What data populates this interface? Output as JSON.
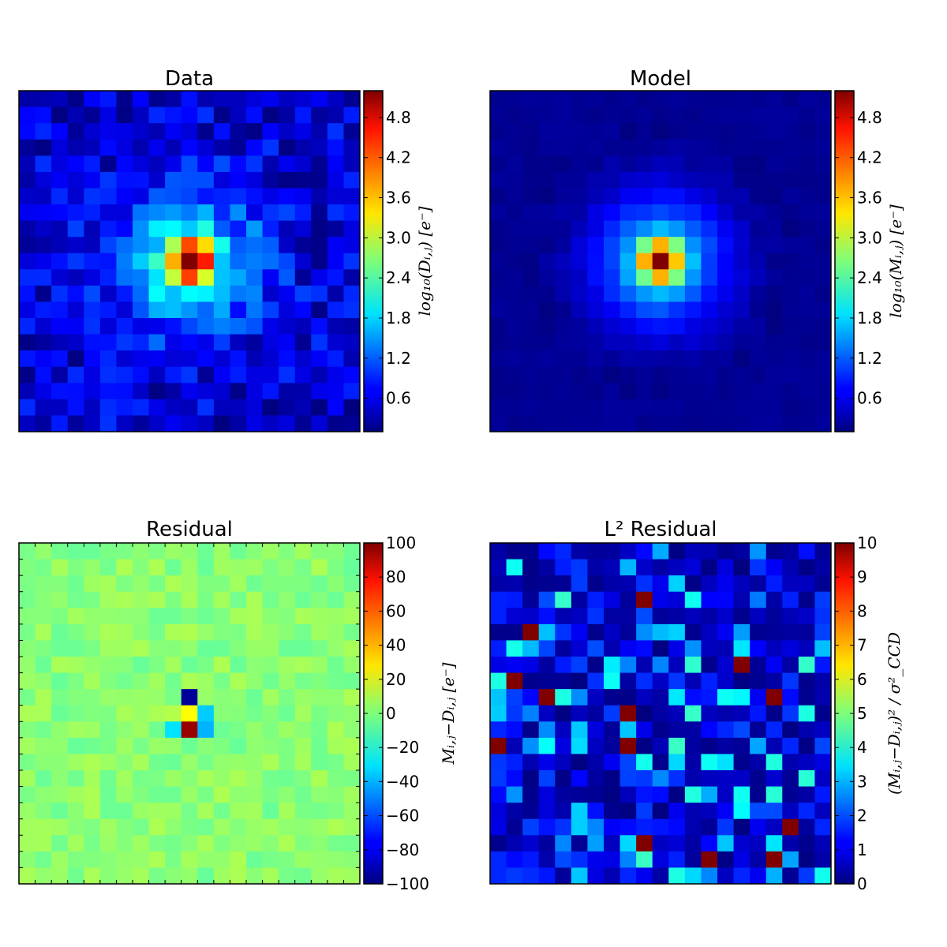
{
  "chart_data": [
    {
      "type": "heatmap",
      "title": "Data",
      "colormap": "jet",
      "colorbar": {
        "label": "log₁₀(Dᵢ,ⱼ)   [e⁻]",
        "range": [
          0.1,
          5.2
        ],
        "ticks": [
          "0.6",
          "1.2",
          "1.8",
          "2.4",
          "3.0",
          "3.6",
          "4.2",
          "4.8"
        ],
        "tick_values": [
          0.6,
          1.2,
          1.8,
          2.4,
          3.0,
          3.6,
          4.2,
          4.8
        ]
      },
      "grid": {
        "rows": 21,
        "cols": 21,
        "pattern": "noisy_gaussian",
        "seed": 11,
        "peak": 5.2,
        "background": 0.4,
        "noise": 0.45
      }
    },
    {
      "type": "heatmap",
      "title": "Model",
      "colormap": "jet",
      "colorbar": {
        "label": "log₁₀(Mᵢ,ⱼ)   [e⁻]",
        "range": [
          0.1,
          5.2
        ],
        "ticks": [
          "0.6",
          "1.2",
          "1.8",
          "2.4",
          "3.0",
          "3.6",
          "4.2",
          "4.8"
        ],
        "tick_values": [
          0.6,
          1.2,
          1.8,
          2.4,
          3.0,
          3.6,
          4.2,
          4.8
        ]
      },
      "grid": {
        "rows": 21,
        "cols": 21,
        "pattern": "smooth_gaussian",
        "seed": 23,
        "peak": 5.2,
        "background": 0.1,
        "noise": 0.08
      }
    },
    {
      "type": "heatmap",
      "title": "Residual",
      "colormap": "jet",
      "colorbar": {
        "label": "Mᵢ,ⱼ−Dᵢ,ⱼ   [e⁻]",
        "range": [
          -100,
          100
        ],
        "ticks": [
          "100",
          "80",
          "60",
          "40",
          "20",
          "0",
          "−20",
          "−40",
          "−60",
          "−80",
          "−100"
        ],
        "tick_values": [
          100,
          80,
          60,
          40,
          20,
          0,
          -20,
          -40,
          -60,
          -80,
          -100
        ]
      },
      "grid": {
        "rows": 21,
        "cols": 21,
        "pattern": "residual",
        "seed": 37,
        "base": 2,
        "noise": 7,
        "special": [
          {
            "r": 9,
            "c": 10,
            "v": -95
          },
          {
            "r": 10,
            "c": 10,
            "v": 25
          },
          {
            "r": 10,
            "c": 11,
            "v": -35
          },
          {
            "r": 11,
            "c": 9,
            "v": -30
          },
          {
            "r": 11,
            "c": 10,
            "v": 95
          },
          {
            "r": 11,
            "c": 11,
            "v": -40
          },
          {
            "r": 10,
            "c": 9,
            "v": 10
          }
        ]
      }
    },
    {
      "type": "heatmap",
      "title": "L² Residual",
      "colormap": "jet",
      "colorbar": {
        "label": "(Mᵢ,ⱼ−Dᵢ,ⱼ)² / σ²_CCD",
        "range": [
          0,
          10
        ],
        "ticks": [
          "10",
          "9",
          "8",
          "7",
          "6",
          "5",
          "4",
          "3",
          "2",
          "1",
          "0"
        ],
        "tick_values": [
          10,
          9,
          8,
          7,
          6,
          5,
          4,
          3,
          2,
          1,
          0
        ]
      },
      "grid": {
        "rows": 21,
        "cols": 21,
        "pattern": "chi2",
        "seed": 53
      }
    }
  ]
}
